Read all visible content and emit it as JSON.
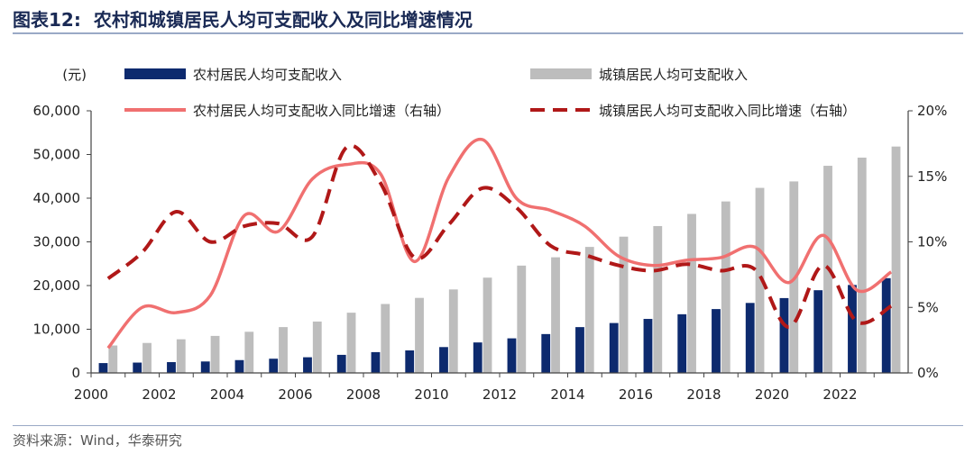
{
  "figure": {
    "number": "图表12:",
    "title": "农村和城镇居民人均可支配收入及同比增速情况",
    "source": "资料来源：Wind，华泰研究"
  },
  "chart_data": {
    "type": "bar",
    "y_unit_label": "(元)",
    "y_left": {
      "range": [
        0,
        60000
      ],
      "ticks": [
        "0",
        "10,000",
        "20,000",
        "30,000",
        "40,000",
        "50,000",
        "60,000"
      ]
    },
    "y_right": {
      "range": [
        0,
        20
      ],
      "ticks": [
        "0%",
        "5%",
        "10%",
        "15%",
        "20%"
      ]
    },
    "x_tick_labels": [
      "2000",
      "2002",
      "2004",
      "2006",
      "2008",
      "2010",
      "2012",
      "2014",
      "2016",
      "2018",
      "2020",
      "2022"
    ],
    "years": [
      2000,
      2001,
      2002,
      2003,
      2004,
      2005,
      2006,
      2007,
      2008,
      2009,
      2010,
      2011,
      2012,
      2013,
      2014,
      2015,
      2016,
      2017,
      2018,
      2019,
      2020,
      2021,
      2022,
      2023
    ],
    "series": [
      {
        "name": "农村居民人均可支配收入",
        "kind": "bar",
        "axis": "left",
        "color": "#0d2a6e",
        "values": [
          2253,
          2366,
          2476,
          2622,
          2936,
          3255,
          3587,
          4140,
          4761,
          5153,
          5919,
          6977,
          7917,
          8896,
          10489,
          11422,
          12363,
          13432,
          14617,
          16021,
          17131,
          18931,
          20133,
          21691
        ]
      },
      {
        "name": "城镇居民人均可支配收入",
        "kind": "bar",
        "axis": "left",
        "color": "#bdbdbd",
        "values": [
          6280,
          6860,
          7703,
          8472,
          9422,
          10493,
          11760,
          13786,
          15781,
          17175,
          19109,
          21810,
          24565,
          26467,
          28844,
          31195,
          33616,
          36396,
          39251,
          42359,
          43834,
          47412,
          49283,
          51821
        ]
      },
      {
        "name": "农村居民人均可支配收入同比增速（右轴）",
        "kind": "line",
        "axis": "right",
        "color": "#f07070",
        "dash": "solid",
        "values": [
          1.9,
          5.0,
          4.6,
          5.9,
          12.0,
          10.8,
          14.8,
          15.9,
          15.2,
          8.5,
          14.9,
          17.8,
          13.3,
          12.4,
          11.2,
          8.9,
          8.2,
          8.6,
          8.8,
          9.6,
          6.9,
          10.5,
          6.3,
          7.7
        ]
      },
      {
        "name": "城镇居民人均可支配收入同比增速（右轴）",
        "kind": "line",
        "axis": "right",
        "color": "#b01818",
        "dash": "dashed",
        "values": [
          7.2,
          9.2,
          12.3,
          10.0,
          11.2,
          11.4,
          10.4,
          17.2,
          14.5,
          8.8,
          11.3,
          14.1,
          12.6,
          9.7,
          9.0,
          8.2,
          7.8,
          8.3,
          7.8,
          7.9,
          3.5,
          8.2,
          3.9,
          5.1
        ]
      }
    ],
    "grid": false,
    "legend_position": "top"
  }
}
